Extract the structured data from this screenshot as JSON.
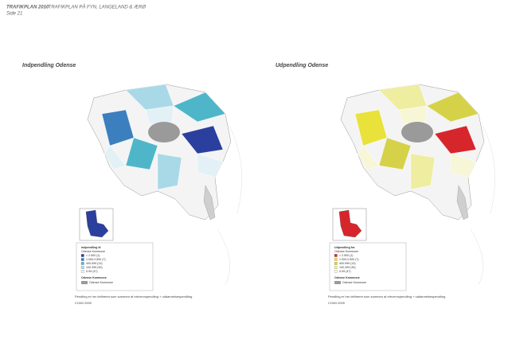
{
  "header": {
    "title": "TRAFIKPLAN 2010",
    "subtitle": "- TRAFIKPLAN PÅ FYN, LANGELAND & ÆRØ",
    "page": "Side 21"
  },
  "panels": [
    {
      "title": "Indpendling Odense",
      "legend": {
        "title": "Indpendling til",
        "subtitle": "Odense Kommune",
        "items": [
          "> 2.500 (1)",
          "1.000-2.500 (7)",
          "400-999 (13)",
          "100-399 (30)",
          "0-99 (47)"
        ],
        "area_title": "Odense Kommune",
        "area_item": "Odense Kommune"
      },
      "caption": "Pendling er her defineret som summen af erhvervspendling + uddannelsespendling",
      "source": "COWI 2009"
    },
    {
      "title": "Udpendling Odense",
      "legend": {
        "title": "Udpendling fra",
        "subtitle": "Odense Kommune",
        "items": [
          "> 2.500 (1)",
          "1.000-2.500 (7)",
          "400-999 (13)",
          "100-399 (30)",
          "0-99 (47)"
        ],
        "area_title": "Odense Kommune",
        "area_item": "Odense Kommune"
      },
      "caption": "Pendling er her defineret som summen af erhvervspendling + uddannelsespendling",
      "source": "COWI 2009"
    }
  ]
}
